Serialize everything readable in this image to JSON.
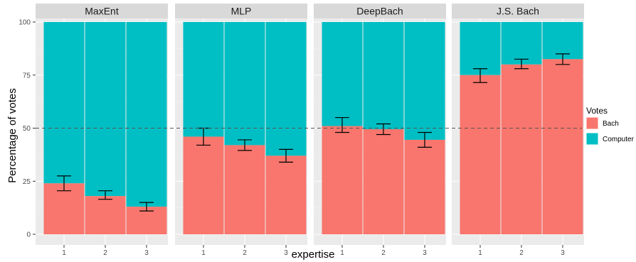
{
  "chart_data": {
    "type": "bar",
    "stacked": true,
    "ylabel": "Percentage of votes",
    "xlabel": "expertise",
    "ylim": [
      0,
      100
    ],
    "yticks": [
      0,
      25,
      50,
      75,
      100
    ],
    "categories": [
      "1",
      "2",
      "3"
    ],
    "reference_line": 50,
    "legend": {
      "title": "Votes",
      "position": "right",
      "entries": [
        "Bach",
        "Computer"
      ]
    },
    "colors": {
      "Bach": "#f8766d",
      "Computer": "#00bfc4"
    },
    "panels": [
      {
        "title": "MaxEnt",
        "bach": [
          24,
          18,
          13
        ],
        "err_low": [
          20.5,
          16.5,
          11
        ],
        "err_high": [
          27.5,
          20.5,
          15
        ]
      },
      {
        "title": "MLP",
        "bach": [
          46,
          42,
          37
        ],
        "err_low": [
          42,
          39.5,
          34
        ],
        "err_high": [
          50,
          44.5,
          40
        ]
      },
      {
        "title": "DeepBach",
        "bach": [
          51,
          49.5,
          44.5
        ],
        "err_low": [
          48,
          47,
          41
        ],
        "err_high": [
          55,
          52,
          48
        ]
      },
      {
        "title": "J.S. Bach",
        "bach": [
          75,
          80,
          82.5
        ],
        "err_low": [
          71.5,
          78,
          80
        ],
        "err_high": [
          78,
          82.5,
          85
        ]
      }
    ]
  }
}
